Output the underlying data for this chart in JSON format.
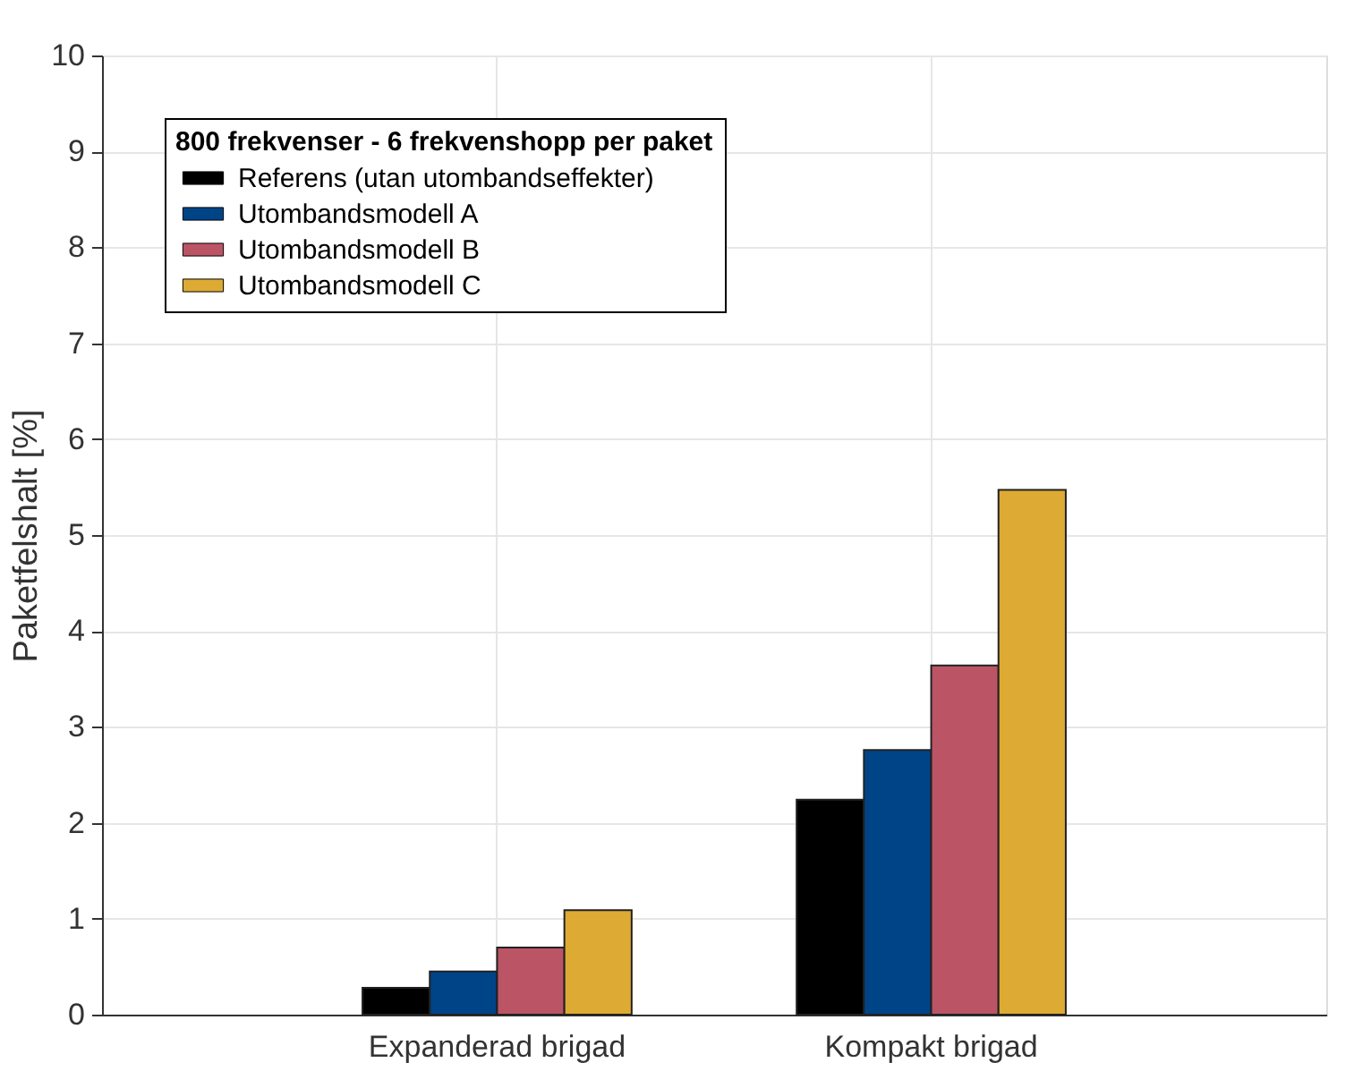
{
  "chart_data": {
    "type": "bar",
    "ylabel": "Paketfelshalt [%]",
    "legend_title": "800 frekvenser - 6 frekvenshopp per paket",
    "categories": [
      "Expanderad brigad",
      "Kompakt brigad"
    ],
    "series": [
      {
        "name": "Referens (utan utombandseffekter)",
        "color": "#000000",
        "values": [
          0.28,
          2.24
        ]
      },
      {
        "name": "Utombandsmodell A",
        "color": "#004488",
        "values": [
          0.45,
          2.76
        ]
      },
      {
        "name": "Utombandsmodell B",
        "color": "#bb5566",
        "values": [
          0.7,
          3.64
        ]
      },
      {
        "name": "Utombandsmodell C",
        "color": "#ddaa33",
        "values": [
          1.09,
          5.47
        ]
      }
    ],
    "ylim": [
      0,
      10
    ],
    "yticks": [
      0,
      1,
      2,
      3,
      4,
      5,
      6,
      7,
      8,
      9,
      10
    ],
    "grid": true,
    "legend": "top left"
  }
}
